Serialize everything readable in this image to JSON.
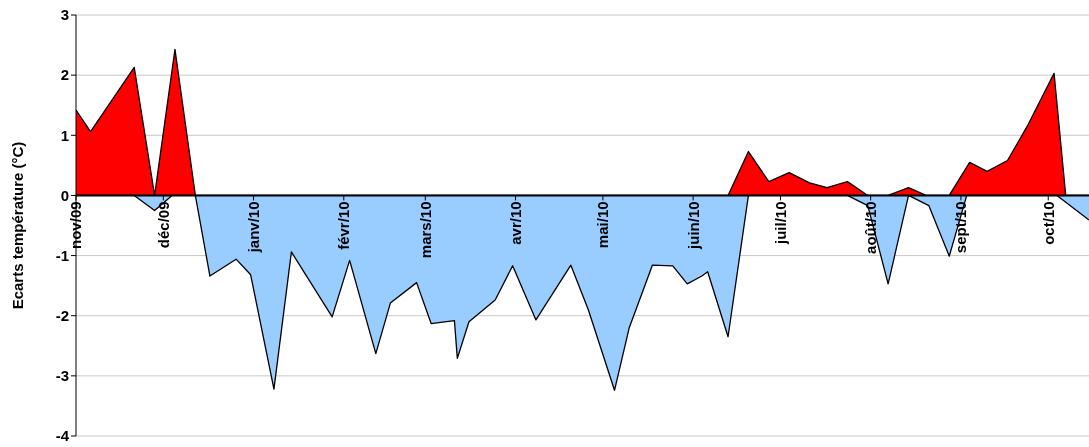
{
  "chart_data": {
    "type": "area",
    "ylabel": "Ecarts température (°C)",
    "xlim": [
      "2009-11-01",
      "2010-10-15"
    ],
    "xticks": [
      {
        "value": "2009-11-01",
        "label": "nov/09"
      },
      {
        "value": "2009-12-01",
        "label": "déc/09"
      },
      {
        "value": "2010-01-01",
        "label": "janv/10"
      },
      {
        "value": "2010-02-01",
        "label": "févr/10"
      },
      {
        "value": "2010-03-01",
        "label": "mars/10"
      },
      {
        "value": "2010-04-01",
        "label": "avr/10"
      },
      {
        "value": "2010-05-01",
        "label": "mai/10"
      },
      {
        "value": "2010-06-01",
        "label": "juin/10"
      },
      {
        "value": "2010-07-01",
        "label": "juil/10"
      },
      {
        "value": "2010-08-01",
        "label": "août/10"
      },
      {
        "value": "2010-09-01",
        "label": "sept/10"
      },
      {
        "value": "2010-10-01",
        "label": "oct/10"
      }
    ],
    "ylim": [
      -4,
      3
    ],
    "yticks": [
      -4,
      -3,
      -2,
      -1,
      0,
      1,
      2,
      3
    ],
    "grid": "y",
    "series": [
      {
        "color": "#ff0000",
        "x": [
          "2009-11-01",
          "2009-11-06",
          "2009-11-21",
          "2009-11-28",
          "2009-12-05",
          "2009-12-12",
          "2010-06-13",
          "2010-06-20",
          "2010-06-27",
          "2010-07-04",
          "2010-07-11",
          "2010-07-17",
          "2010-07-24",
          "2010-07-31",
          "2010-08-07",
          "2010-08-14",
          "2010-08-20",
          "2010-08-28",
          "2010-09-04",
          "2010-09-10",
          "2010-09-17",
          "2010-09-24",
          "2010-10-03",
          "2010-10-07",
          "2010-10-15"
        ],
        "values": [
          1.42,
          1.06,
          2.13,
          0,
          2.43,
          0,
          0,
          0.73,
          0.23,
          0.38,
          0.21,
          0.13,
          0.23,
          0,
          0,
          0.13,
          0,
          0,
          0.55,
          0.4,
          0.58,
          1.17,
          2.03,
          0,
          0
        ]
      },
      {
        "color": "#99ccff",
        "x": [
          "2009-11-01",
          "2009-11-21",
          "2009-11-28",
          "2009-12-04",
          "2009-12-12",
          "2009-12-17",
          "2009-12-26",
          "2009-12-31",
          "2010-01-08",
          "2010-01-14",
          "2010-01-28",
          "2010-02-03",
          "2010-02-12",
          "2010-02-17",
          "2010-02-26",
          "2010-03-03",
          "2010-03-11",
          "2010-03-12",
          "2010-03-16",
          "2010-03-25",
          "2010-03-31",
          "2010-04-08",
          "2010-04-20",
          "2010-04-26",
          "2010-05-05",
          "2010-05-10",
          "2010-05-18",
          "2010-05-25",
          "2010-05-30",
          "2010-06-04",
          "2010-06-06",
          "2010-06-13",
          "2010-06-20",
          "2010-07-24",
          "2010-07-31",
          "2010-08-07",
          "2010-08-14",
          "2010-08-21",
          "2010-08-28",
          "2010-09-03",
          "2010-10-04",
          "2010-10-15"
        ],
        "values": [
          0,
          0,
          -0.25,
          0,
          0,
          -1.34,
          -1.06,
          -1.32,
          -3.22,
          -0.94,
          -2.02,
          -1.08,
          -2.63,
          -1.79,
          -1.45,
          -2.13,
          -2.08,
          -2.71,
          -2.1,
          -1.74,
          -1.17,
          -2.07,
          -1.16,
          -1.9,
          -3.24,
          -2.21,
          -1.16,
          -1.17,
          -1.47,
          -1.34,
          -1.27,
          -2.35,
          0,
          0,
          -0.17,
          -1.47,
          0,
          -0.17,
          -1.01,
          0,
          0,
          -0.41
        ]
      }
    ]
  }
}
